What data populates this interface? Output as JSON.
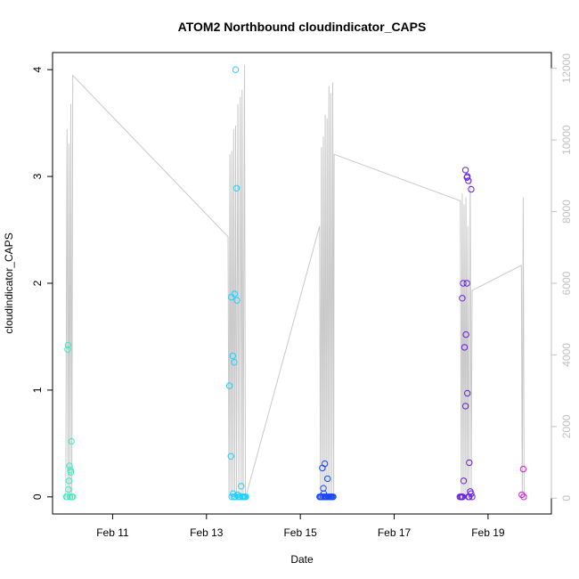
{
  "chart_data": {
    "type": "scatter",
    "title": "ATOM2 Northbound cloudindicator_CAPS",
    "xlabel": "Date",
    "ylabel": "cloudindicator_CAPS",
    "x_ticks": [
      "Feb 11",
      "Feb 13",
      "Feb 15",
      "Feb 17",
      "Feb 19"
    ],
    "x_tick_days": [
      11,
      13,
      15,
      17,
      19
    ],
    "xlim_days": [
      9.72,
      20.35
    ],
    "ylim": [
      -0.16,
      4.16
    ],
    "y_ticks": [
      0,
      1,
      2,
      3,
      4
    ],
    "y2lim": [
      -440,
      12440
    ],
    "y2_ticks": [
      0,
      2000,
      4000,
      6000,
      8000,
      10000,
      12000
    ],
    "y2_color": "#c0c0c0",
    "grid": false,
    "point_series": [
      {
        "color": "#33f0c0",
        "points": [
          [
            10.05,
            1.42
          ],
          [
            10.04,
            1.38
          ],
          [
            10.12,
            0.52
          ],
          [
            10.08,
            0.29
          ],
          [
            10.1,
            0.25
          ],
          [
            10.11,
            0.23
          ],
          [
            10.07,
            0.15
          ],
          [
            10.06,
            0.07
          ],
          [
            10.01,
            0.0
          ],
          [
            10.03,
            0.0
          ],
          [
            10.09,
            0.0
          ],
          [
            10.13,
            0.0
          ],
          [
            10.15,
            0.0
          ]
        ]
      },
      {
        "color": "#20d0ff",
        "points": [
          [
            13.62,
            4.0
          ],
          [
            13.64,
            2.89
          ],
          [
            13.53,
            1.87
          ],
          [
            13.6,
            1.9
          ],
          [
            13.65,
            1.84
          ],
          [
            13.56,
            1.32
          ],
          [
            13.59,
            1.26
          ],
          [
            13.49,
            1.04
          ],
          [
            13.52,
            0.38
          ],
          [
            13.74,
            0.1
          ],
          [
            13.57,
            0.03
          ],
          [
            13.66,
            0.02
          ],
          [
            13.54,
            0.0
          ],
          [
            13.58,
            0.0
          ],
          [
            13.61,
            0.0
          ],
          [
            13.68,
            0.0
          ],
          [
            13.7,
            0.0
          ],
          [
            13.72,
            0.0
          ],
          [
            13.76,
            0.0
          ],
          [
            13.78,
            0.0
          ],
          [
            13.8,
            0.0
          ],
          [
            13.82,
            0.0
          ],
          [
            13.84,
            0.0
          ]
        ]
      },
      {
        "color": "#1848ff",
        "points": [
          [
            15.52,
            0.31
          ],
          [
            15.47,
            0.27
          ],
          [
            15.58,
            0.17
          ],
          [
            15.49,
            0.08
          ],
          [
            15.5,
            0.03
          ],
          [
            15.41,
            0.0
          ],
          [
            15.43,
            0.0
          ],
          [
            15.45,
            0.0
          ],
          [
            15.48,
            0.0
          ],
          [
            15.51,
            0.0
          ],
          [
            15.53,
            0.0
          ],
          [
            15.55,
            0.0
          ],
          [
            15.57,
            0.0
          ],
          [
            15.6,
            0.0
          ],
          [
            15.62,
            0.0
          ],
          [
            15.64,
            0.0
          ],
          [
            15.66,
            0.0
          ],
          [
            15.68,
            0.0
          ],
          [
            15.7,
            0.0
          ]
        ]
      },
      {
        "color": "#6a20e0",
        "points": [
          [
            18.52,
            3.06
          ],
          [
            18.56,
            3.0
          ],
          [
            18.55,
            2.99
          ],
          [
            18.58,
            2.96
          ],
          [
            18.64,
            2.88
          ],
          [
            18.47,
            2.0
          ],
          [
            18.55,
            2.0
          ],
          [
            18.45,
            1.86
          ],
          [
            18.53,
            1.52
          ],
          [
            18.5,
            1.4
          ],
          [
            18.56,
            0.97
          ],
          [
            18.52,
            0.85
          ],
          [
            18.6,
            0.32
          ],
          [
            18.48,
            0.15
          ],
          [
            18.62,
            0.05
          ],
          [
            18.64,
            0.03
          ],
          [
            18.4,
            0.0
          ],
          [
            18.42,
            0.0
          ],
          [
            18.44,
            0.0
          ],
          [
            18.46,
            0.0
          ],
          [
            18.58,
            0.0
          ],
          [
            18.6,
            0.0
          ],
          [
            18.66,
            0.0
          ]
        ]
      },
      {
        "color": "#d020e0",
        "points": [
          [
            19.75,
            0.26
          ],
          [
            19.72,
            0.02
          ],
          [
            19.76,
            0.0
          ]
        ]
      }
    ],
    "line_series": {
      "color": "#c8c8c8",
      "axis": "right",
      "points": [
        [
          10.0,
          0
        ],
        [
          10.03,
          10300
        ],
        [
          10.05,
          0
        ],
        [
          10.07,
          9900
        ],
        [
          10.09,
          0
        ],
        [
          10.11,
          11000
        ],
        [
          10.13,
          0
        ],
        [
          10.15,
          11800
        ],
        [
          13.46,
          7300
        ],
        [
          13.48,
          0
        ],
        [
          13.5,
          9600
        ],
        [
          13.52,
          0
        ],
        [
          13.54,
          9700
        ],
        [
          13.56,
          0
        ],
        [
          13.58,
          10300
        ],
        [
          13.6,
          0
        ],
        [
          13.62,
          10400
        ],
        [
          13.64,
          0
        ],
        [
          13.67,
          11000
        ],
        [
          13.69,
          0
        ],
        [
          13.72,
          11200
        ],
        [
          13.74,
          0
        ],
        [
          13.76,
          11400
        ],
        [
          13.78,
          0
        ],
        [
          13.81,
          12100
        ],
        [
          13.83,
          0
        ],
        [
          15.41,
          7600
        ],
        [
          15.43,
          0
        ],
        [
          15.45,
          9800
        ],
        [
          15.47,
          0
        ],
        [
          15.49,
          10100
        ],
        [
          15.51,
          0
        ],
        [
          15.53,
          10700
        ],
        [
          15.55,
          0
        ],
        [
          15.57,
          10600
        ],
        [
          15.59,
          0
        ],
        [
          15.61,
          11500
        ],
        [
          15.63,
          0
        ],
        [
          15.65,
          11300
        ],
        [
          15.67,
          0
        ],
        [
          15.69,
          11600
        ],
        [
          15.71,
          0
        ],
        [
          15.72,
          9600
        ],
        [
          18.41,
          8300
        ],
        [
          18.43,
          0
        ],
        [
          18.45,
          8500
        ],
        [
          18.47,
          0
        ],
        [
          18.49,
          8200
        ],
        [
          18.51,
          0
        ],
        [
          18.53,
          8400
        ],
        [
          18.55,
          0
        ],
        [
          18.57,
          7600
        ],
        [
          18.59,
          0
        ],
        [
          18.62,
          8900
        ],
        [
          18.64,
          0
        ],
        [
          18.66,
          5800
        ],
        [
          19.71,
          6500
        ],
        [
          19.73,
          0
        ],
        [
          19.75,
          8400
        ],
        [
          19.77,
          0
        ]
      ]
    }
  }
}
